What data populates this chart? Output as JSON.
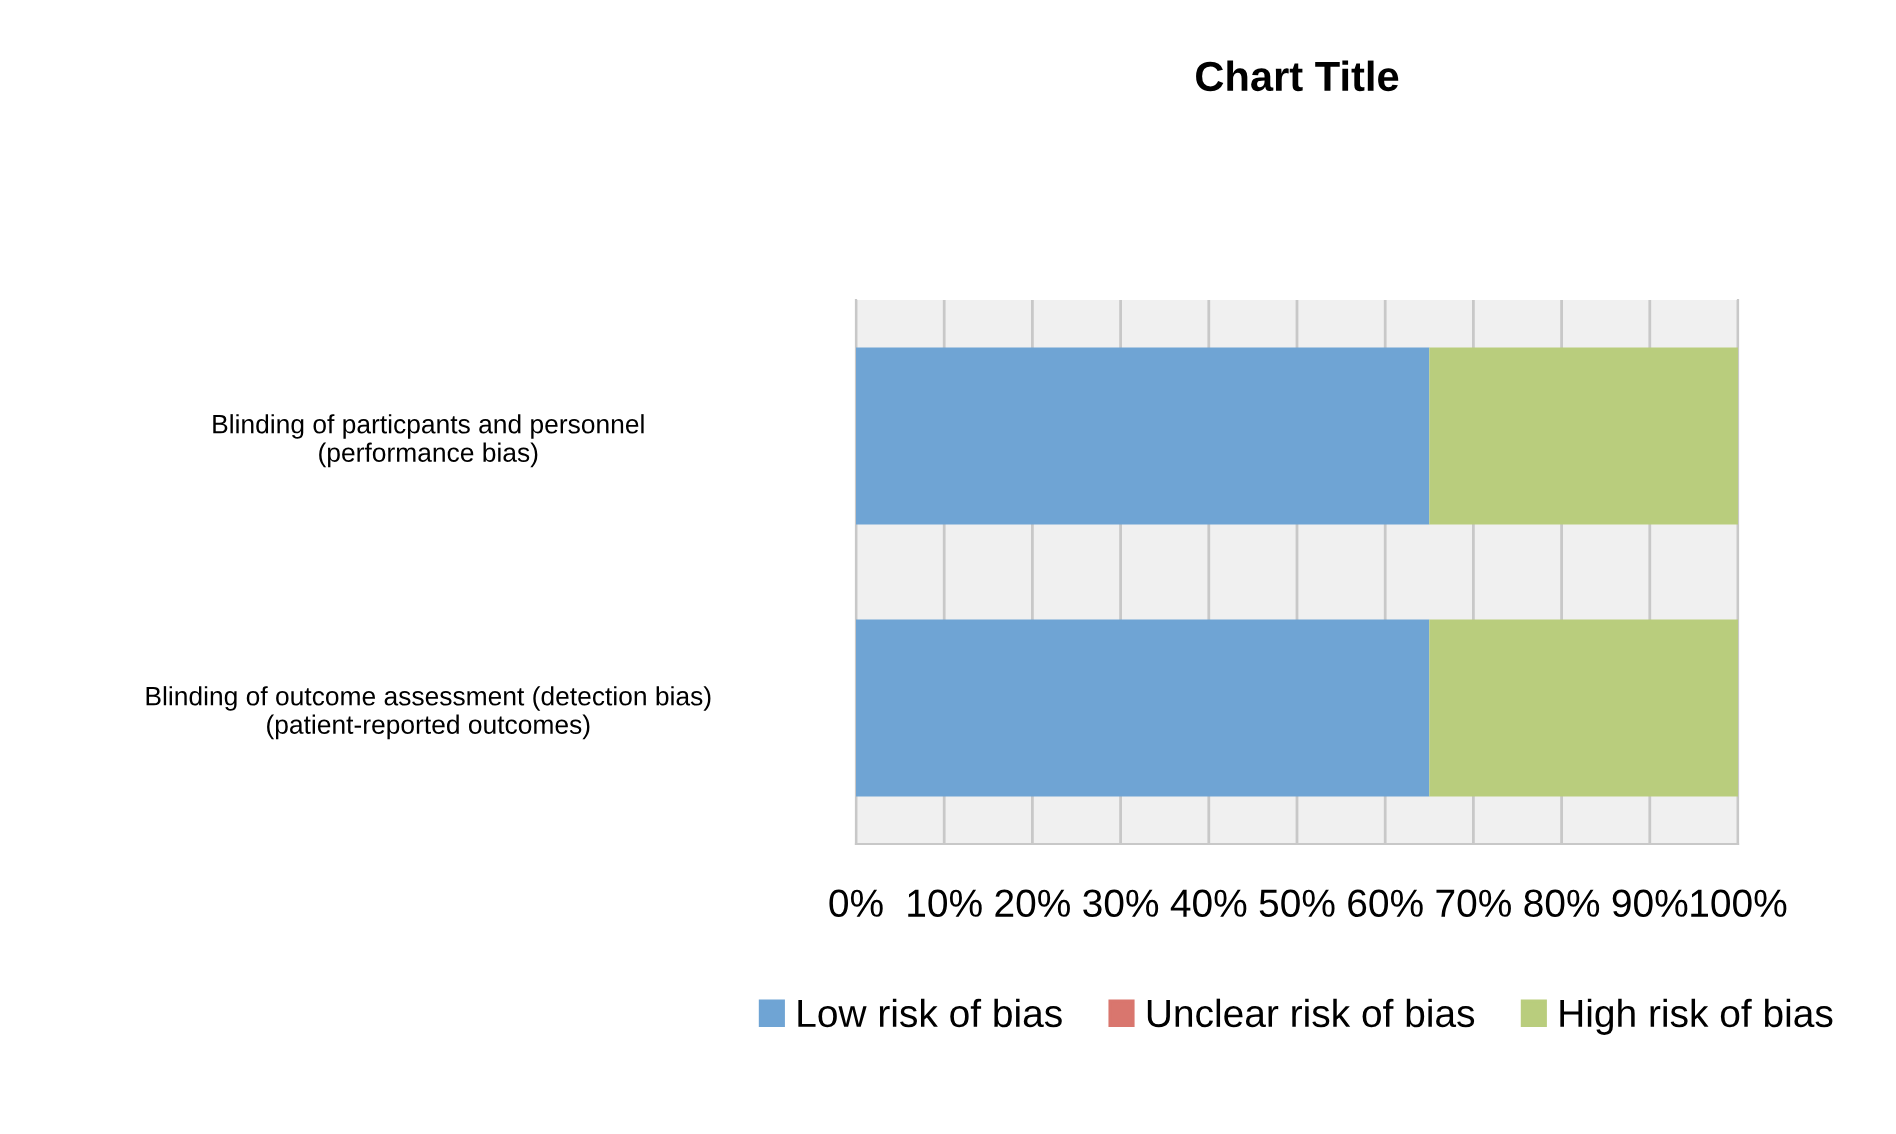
{
  "chart_data": {
    "type": "bar",
    "orientation": "horizontal",
    "stacked": true,
    "title": "Chart Title",
    "categories": [
      "Blinding of particpants and personnel\n(performance bias)",
      "Blinding of outcome assessment (detection bias)\n(patient-reported outcomes)"
    ],
    "series": [
      {
        "name": "Low risk of bias",
        "color": "#6fa4d4",
        "values": [
          65,
          65
        ]
      },
      {
        "name": "Unclear risk of bias",
        "color": "#d9766e",
        "values": [
          0,
          0
        ]
      },
      {
        "name": "High risk of bias",
        "color": "#b9cd7d",
        "values": [
          35,
          35
        ]
      }
    ],
    "xlim": [
      0,
      100
    ],
    "xticks": [
      {
        "value": 0,
        "label": "0%"
      },
      {
        "value": 10,
        "label": "10%"
      },
      {
        "value": 20,
        "label": "20%"
      },
      {
        "value": 30,
        "label": "30%"
      },
      {
        "value": 40,
        "label": "40%"
      },
      {
        "value": 50,
        "label": "50%"
      },
      {
        "value": 60,
        "label": "60%"
      },
      {
        "value": 70,
        "label": "70%"
      },
      {
        "value": 80,
        "label": "80%"
      },
      {
        "value": 90,
        "label": "90%"
      },
      {
        "value": 100,
        "label": "100%"
      }
    ],
    "grid": "x",
    "legend": "bottom"
  }
}
